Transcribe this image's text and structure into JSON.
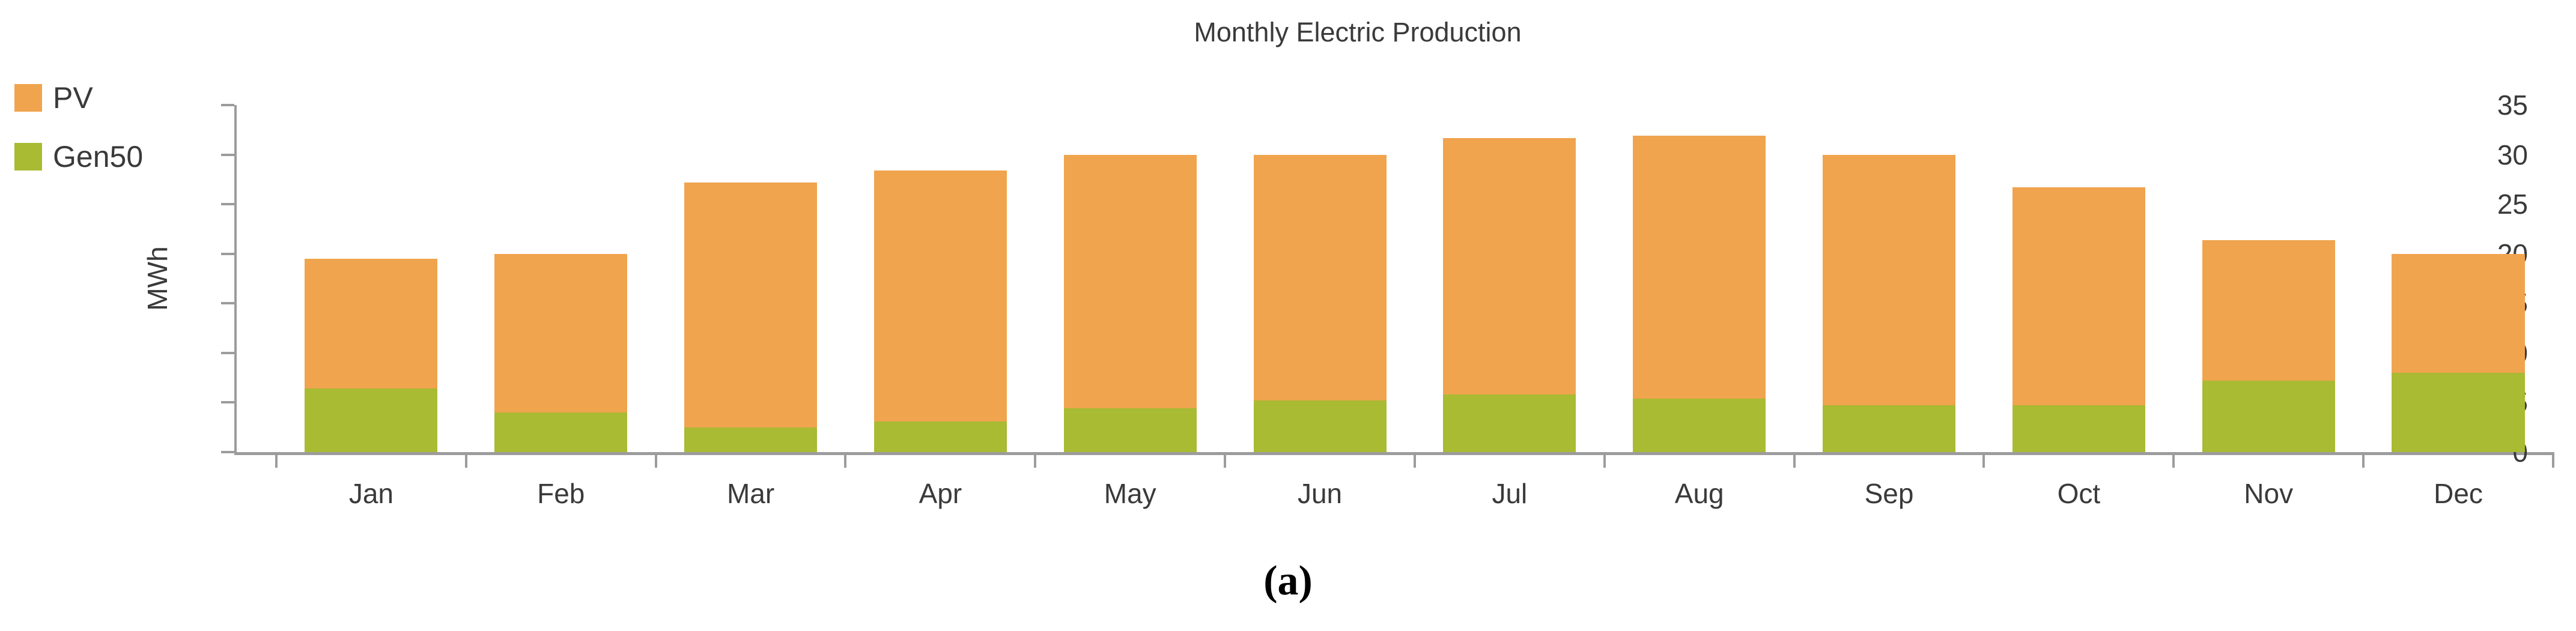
{
  "title": "Monthly Electric Production",
  "caption": "(a)",
  "legend": {
    "position": "top-left",
    "items": [
      {
        "label": "PV",
        "color": "#f0a44e"
      },
      {
        "label": "Gen50",
        "color": "#a9ba33"
      }
    ]
  },
  "y_axis": {
    "label": "MWh",
    "ticks": [
      0,
      5,
      10,
      15,
      20,
      25,
      30,
      35
    ],
    "min": 0,
    "max": 35
  },
  "x_axis": {
    "categories": [
      "Jan",
      "Feb",
      "Mar",
      "Apr",
      "May",
      "Jun",
      "Jul",
      "Aug",
      "Sep",
      "Oct",
      "Nov",
      "Dec"
    ]
  },
  "chart_data": {
    "type": "bar",
    "stacked": true,
    "title": "Monthly Electric Production",
    "xlabel": "",
    "ylabel": "MWh",
    "ylim": [
      0,
      35
    ],
    "grid": false,
    "legend_position": "top-left",
    "categories": [
      "Jan",
      "Feb",
      "Mar",
      "Apr",
      "May",
      "Jun",
      "Jul",
      "Aug",
      "Sep",
      "Oct",
      "Nov",
      "Dec"
    ],
    "series": [
      {
        "name": "Gen50",
        "color": "#a9ba33",
        "values": [
          6.4,
          4.0,
          2.5,
          3.1,
          4.4,
          5.2,
          5.8,
          5.4,
          4.7,
          4.7,
          7.2,
          8.0
        ]
      },
      {
        "name": "PV",
        "color": "#f0a44e",
        "values": [
          13.1,
          16.0,
          24.7,
          25.3,
          25.6,
          24.8,
          25.9,
          26.5,
          25.3,
          22.0,
          14.2,
          12.0
        ]
      }
    ],
    "stack_totals": [
      19.5,
      20.0,
      27.2,
      28.4,
      30.0,
      30.0,
      31.7,
      31.9,
      30.0,
      26.7,
      21.4,
      20.0
    ]
  },
  "colors": {
    "axis": "#9c9c9c",
    "text": "#3a3a3a",
    "background": "#ffffff",
    "pv": "#f0a44e",
    "gen50": "#a9ba33"
  }
}
